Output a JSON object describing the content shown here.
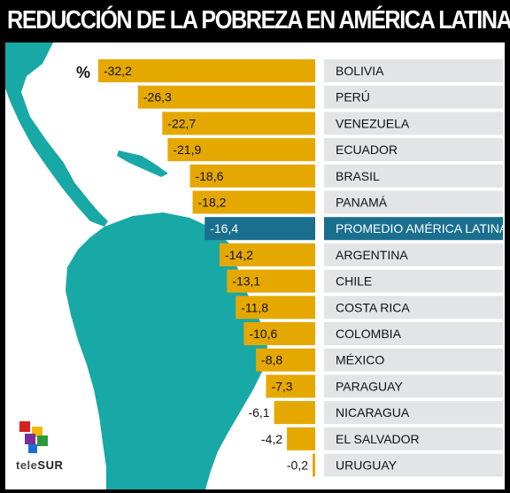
{
  "title": "REDUCCIÓN DE LA POBREZA EN AMÉRICA LATINA",
  "unit": "%",
  "brand": {
    "name_light": "tele",
    "name_bold": "SUR"
  },
  "colors": {
    "bar": "#e5a800",
    "highlight_bar": "#1a6f8f",
    "label_bg": "#e3e4e6",
    "highlight_label_bg": "#1a6f8f",
    "map": "#18a8a6",
    "title_bg": "#000000",
    "title_text": "#ffffff"
  },
  "chart_data": {
    "type": "bar",
    "orientation": "horizontal",
    "categories": [
      "BOLIVIA",
      "PERÚ",
      "VENEZUELA",
      "ECUADOR",
      "BRASIL",
      "PANAMÁ",
      "PROMEDIO AMÉRICA LATINA",
      "ARGENTINA",
      "CHILE",
      "COSTA RICA",
      "COLOMBIA",
      "MÉXICO",
      "PARAGUAY",
      "NICARAGUA",
      "EL SALVADOR",
      "URUGUAY"
    ],
    "values": [
      -32.2,
      -26.3,
      -22.7,
      -21.9,
      -18.6,
      -18.2,
      -16.4,
      -14.2,
      -13.1,
      -11.8,
      -10.6,
      -8.8,
      -7.3,
      -6.1,
      -4.2,
      -0.2
    ],
    "value_labels": [
      "-32,2",
      "-26,3",
      "-22,7",
      "-21,9",
      "-18,6",
      "-18,2",
      "-16,4",
      "-14,2",
      "-13,1",
      "-11,8",
      "-10,6",
      "-8,8",
      "-7,3",
      "-6,1",
      "-4,2",
      "-0,2"
    ],
    "highlight_category": "PROMEDIO AMÉRICA LATINA",
    "title": "REDUCCIÓN DE LA POBREZA EN AMÉRICA LATINA",
    "unit": "%",
    "xlim": [
      -32.2,
      0
    ],
    "grid": false,
    "legend": "none"
  }
}
